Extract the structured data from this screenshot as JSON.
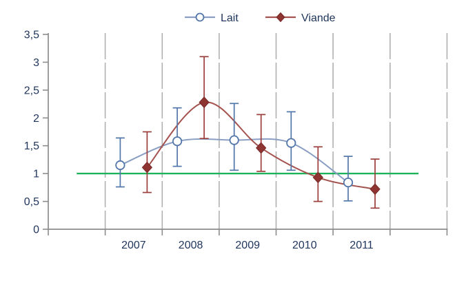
{
  "chart_data": {
    "type": "line",
    "title": "",
    "categories": [
      "2007",
      "2008",
      "2009",
      "2010",
      "2011"
    ],
    "series": [
      {
        "name": "Lait",
        "marker": "circle",
        "line_color": "#8A9EC4",
        "marker_stroke": "#5276A9",
        "marker_fill": "#FFFFFF",
        "error_color": "#5276A9",
        "values": [
          1.15,
          1.58,
          1.6,
          1.55,
          0.84
        ],
        "error_low": [
          0.76,
          1.13,
          1.06,
          1.06,
          0.51
        ],
        "error_high": [
          1.64,
          2.18,
          2.26,
          2.11,
          1.31
        ]
      },
      {
        "name": "Viande",
        "marker": "diamond",
        "line_color": "#A4524E",
        "marker_stroke": "#7E2D2B",
        "marker_fill": "#8E3532",
        "error_color": "#9B3E3B",
        "values": [
          1.11,
          2.28,
          1.46,
          0.93,
          0.72
        ],
        "error_low": [
          0.66,
          1.63,
          1.04,
          0.5,
          0.38
        ],
        "error_high": [
          1.75,
          3.1,
          2.06,
          1.48,
          1.26
        ]
      }
    ],
    "reference_line": {
      "value": 1,
      "color": "#1FB25C"
    },
    "y_axis": {
      "min": 0,
      "max": 3.5,
      "step": 0.5,
      "tick_labels": [
        "0",
        "0,5",
        "1",
        "1,5",
        "2",
        "2,5",
        "3",
        "3,5"
      ]
    },
    "x_axis": {
      "labels": [
        "2007",
        "2008",
        "2009",
        "2010",
        "2011"
      ]
    },
    "legend": {
      "position": "top-center",
      "entries": [
        "Lait",
        "Viande"
      ]
    },
    "grid": {
      "vertical": true,
      "style": "dashed",
      "color": "#B0B0B0"
    },
    "axis_color": "#8C8C8C",
    "text_color": "#20365C",
    "smooth_lines": true
  }
}
